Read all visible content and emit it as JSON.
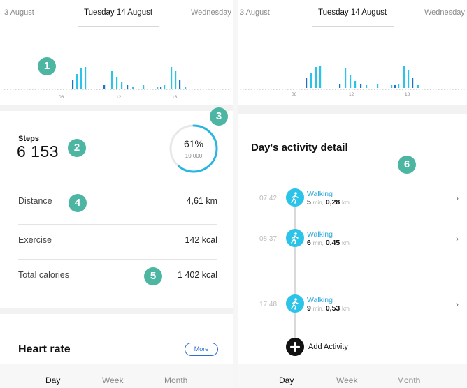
{
  "left_panel": {
    "datebar": {
      "prev": "3 August",
      "current": "Tuesday 14 August",
      "next": "Wednesday"
    },
    "chart_ticks": [
      "06",
      "12",
      "18"
    ],
    "badges": [
      "1",
      "2",
      "3",
      "4",
      "5"
    ],
    "steps": {
      "label": "Steps",
      "value": "6 153",
      "percent": "61%",
      "goal": "10 000",
      "progress": 0.61
    },
    "rows": [
      {
        "label": "Distance",
        "value": "4,61 km"
      },
      {
        "label": "Exercise",
        "value": "142 kcal"
      },
      {
        "label": "Total calories",
        "value": "1 402 kcal"
      }
    ],
    "heart_rate": {
      "title": "Heart rate",
      "more_label": "More"
    },
    "tabs": [
      "Day",
      "Week",
      "Month"
    ]
  },
  "right_panel": {
    "datebar": {
      "prev": "3 August",
      "current": "Tuesday 14 August",
      "next": "Wednesday"
    },
    "chart_ticks": [
      "06",
      "12",
      "18"
    ],
    "badge": "6",
    "detail_title": "Day's activity detail",
    "activities": [
      {
        "time": "07:42",
        "name": "Walking",
        "minutes": "5",
        "min_unit": "min,",
        "distance": "0,28",
        "dist_unit": "km"
      },
      {
        "time": "08:37",
        "name": "Walking",
        "minutes": "6",
        "min_unit": "min,",
        "distance": "0,45",
        "dist_unit": "km"
      },
      {
        "time": "17:48",
        "name": "Walking",
        "minutes": "9",
        "min_unit": "min,",
        "distance": "0,53",
        "dist_unit": "km"
      }
    ],
    "chevron": "›",
    "add_activity_label": "Add Activity",
    "tabs": [
      "Day",
      "Week",
      "Month"
    ]
  },
  "colors": {
    "accent": "#29b6e0",
    "badge": "#4cb6a3",
    "more_button": "#2a6fd6"
  }
}
